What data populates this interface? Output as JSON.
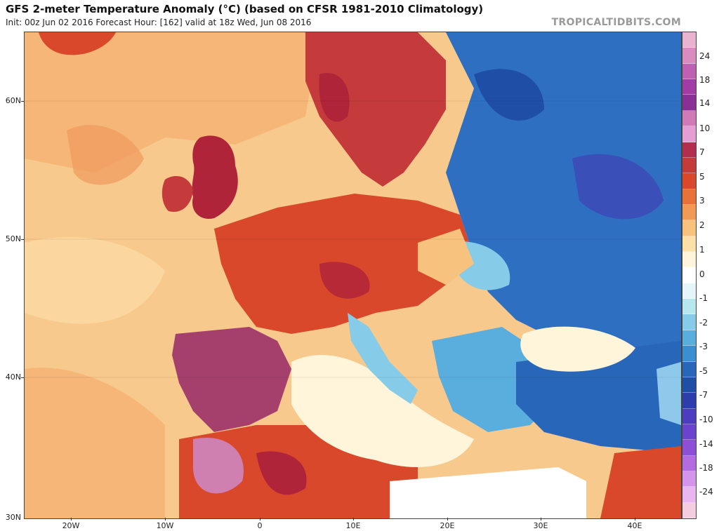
{
  "header": {
    "title": "GFS 2-meter Temperature Anomaly (°C) (based on CFSR 1981-2010 Climatology)",
    "subtitle": "Init: 00z Jun 02 2016   Forecast Hour: [162]   valid at 18z Wed, Jun 08 2016",
    "watermark": "TROPICALTIDBITS.COM"
  },
  "map": {
    "lat_labels": [
      "60N",
      "50N",
      "40N",
      "30N"
    ],
    "lon_labels": [
      "20W",
      "10W",
      "0",
      "10E",
      "20E",
      "30E",
      "40E"
    ],
    "colors": {
      "ocean_warm": "#f7c98c",
      "land_hot": "#d9482b",
      "land_very_hot": "#b0243a",
      "extreme_hot": "#a4406b",
      "neutral": "#ffffff",
      "cool": "#8ec9ec",
      "cold": "#2f6fc2",
      "very_cold": "#3a4fb8",
      "coastline": "#1a1a1a"
    }
  },
  "colorbar": {
    "labels": [
      "24",
      "18",
      "14",
      "10",
      "7",
      "5",
      "3",
      "2",
      "1",
      "0",
      "-1",
      "-2",
      "-3",
      "-5",
      "-7",
      "-10",
      "-14",
      "-18",
      "-24"
    ],
    "colors": [
      "#e8b4d0",
      "#d98cc0",
      "#c060b2",
      "#a03ca4",
      "#8a2f93",
      "#d07ab8",
      "#e49ed3",
      "#b22d4e",
      "#c53a3a",
      "#d9482b",
      "#e8713a",
      "#f09a55",
      "#f6c27d",
      "#fbe0a8",
      "#fff5da",
      "#ffffff",
      "#e4f6f8",
      "#b6e6ee",
      "#86cbe8",
      "#5aaede",
      "#3a8fd0",
      "#2766b8",
      "#1f4ea6",
      "#2d3eac",
      "#4b3cc0",
      "#6c43cc",
      "#8d4fd6",
      "#b36ce0",
      "#d394ea",
      "#eab6f0",
      "#f4cde0"
    ]
  }
}
